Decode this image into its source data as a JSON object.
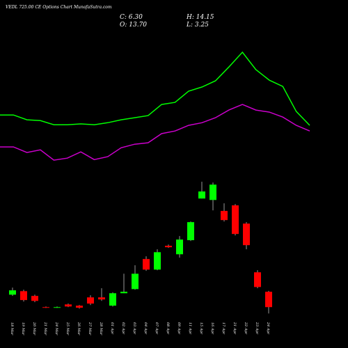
{
  "chart_data": {
    "type": "candlestick",
    "title": "VEDL 725.00 CE Options Chart MunafaSutra.com",
    "info": [
      "C: 6.30",
      "H: 14.15",
      "O: 13.70",
      "L: 3.25"
    ],
    "categories": [
      "18 Mar",
      "19 Mar",
      "20 Mar",
      "21 Mar",
      "24 Mar",
      "25 Mar",
      "26 Mar",
      "27 Mar",
      "28 Mar",
      "01 Apr",
      "02 Apr",
      "03 Apr",
      "04 Apr",
      "07 Apr",
      "08 Apr",
      "09 Apr",
      "11 Apr",
      "15 Apr",
      "16 Apr",
      "17 Apr",
      "21 Apr",
      "22 Apr",
      "23 Apr",
      "24 Apr"
    ],
    "open": [
      12.3,
      14.0,
      11.7,
      6.3,
      6.0,
      7.6,
      7.0,
      11.0,
      11.0,
      7.0,
      13.0,
      15.0,
      29.5,
      24.4,
      35.9,
      31.8,
      38.6,
      58.7,
      58.0,
      52.7,
      55.4,
      46.6,
      23.1,
      13.7
    ],
    "high": [
      15.7,
      14.7,
      12.3,
      6.6,
      6.6,
      8.0,
      7.3,
      12.0,
      15.4,
      13.4,
      22.4,
      26.5,
      30.8,
      34.2,
      36.5,
      40.6,
      47.6,
      66.8,
      66.4,
      56.4,
      56.0,
      47.3,
      24.1,
      14.15
    ],
    "low": [
      11.7,
      9.0,
      8.7,
      5.9,
      5.9,
      6.3,
      5.6,
      7.3,
      9.3,
      6.6,
      13.0,
      14.7,
      23.8,
      24.1,
      34.9,
      30.2,
      38.2,
      58.7,
      53.0,
      47.6,
      40.9,
      34.2,
      15.4,
      3.25
    ],
    "close": [
      14.4,
      9.7,
      9.3,
      6.0,
      6.3,
      6.6,
      6.0,
      8.0,
      10.0,
      13.0,
      13.7,
      22.4,
      24.4,
      32.8,
      35.2,
      38.9,
      47.3,
      62.1,
      65.4,
      48.3,
      41.6,
      36.2,
      16.0,
      6.3
    ],
    "up_color": "#00ff00",
    "down_color": "#ff0000",
    "lines": [
      {
        "color": "#00ff00",
        "values": [
          99.0,
          99.0,
          96.7,
          96.3,
          94.3,
          94.3,
          94.7,
          94.3,
          95.3,
          96.7,
          97.7,
          98.7,
          104.1,
          105.1,
          110.5,
          112.5,
          115.5,
          122.2,
          129.3,
          120.9,
          115.8,
          112.8,
          100.7,
          94.0
        ]
      },
      {
        "color": "#cc00cc",
        "values": [
          83.6,
          83.6,
          80.9,
          82.2,
          77.2,
          78.2,
          81.2,
          77.5,
          78.9,
          83.2,
          84.9,
          85.6,
          90.0,
          91.3,
          94.0,
          95.3,
          97.7,
          101.4,
          104.1,
          101.4,
          100.4,
          98.0,
          94.0,
          91.3
        ]
      }
    ],
    "ylim": [
      0,
      154.5
    ]
  }
}
